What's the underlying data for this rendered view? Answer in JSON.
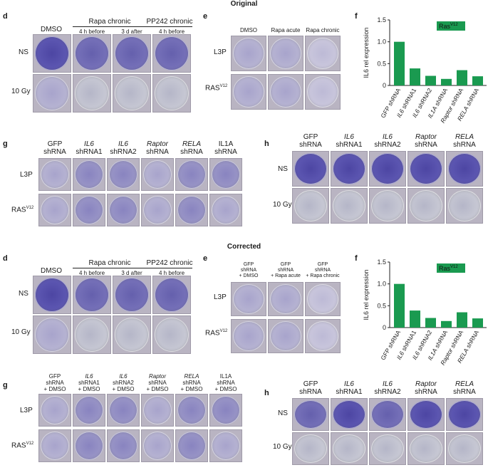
{
  "sections": {
    "top_title": "Original",
    "bottom_title": "Corrected"
  },
  "panel_labels": {
    "d": "d",
    "e": "e",
    "f": "f",
    "g": "g",
    "h": "h"
  },
  "panel_d": {
    "col_dmso": "DMSO",
    "group_rapa": "Rapa chronic",
    "group_pp242": "PP242 chronic",
    "sub_4h_before": "4 h before",
    "sub_3d_after": "3 d after",
    "row_ns": "NS",
    "row_10gy": "10 Gy"
  },
  "panel_e_orig": {
    "cols": [
      "DMSO",
      "Rapa acute",
      "Rapa chronic"
    ],
    "row_l3p": "L3P",
    "row_ras": "RAS",
    "row_ras_sup": "V12"
  },
  "panel_e_corr": {
    "col1": [
      "GFP",
      "shRNA",
      "+ DMSO"
    ],
    "col2": [
      "GFP",
      "shRNA",
      "+ Rapa acute"
    ],
    "col3": [
      "GFP",
      "shRNA",
      "+ Rapa chronic"
    ]
  },
  "panel_g_orig": {
    "cols": [
      [
        "GFP",
        "shRNA"
      ],
      [
        "IL6",
        "shRNA1"
      ],
      [
        "IL6",
        "shRNA2"
      ],
      [
        "Raptor",
        "shRNA"
      ],
      [
        "RELA",
        "shRNA"
      ],
      [
        "IL1A",
        "shRNA"
      ]
    ],
    "row_l3p": "L3P",
    "row_ras": "RAS",
    "row_ras_sup": "V12"
  },
  "panel_g_corr": {
    "cols": [
      [
        "GFP",
        "shRNA",
        "+ DMSO"
      ],
      [
        "IL6",
        "shRNA1",
        "+ DMSO"
      ],
      [
        "IL6",
        "shRNA2",
        "+ DMSO"
      ],
      [
        "Raptor",
        "shRNA",
        "+ DMSO"
      ],
      [
        "RELA",
        "shRNA",
        "+ DMSO"
      ],
      [
        "IL1A",
        "shRNA",
        "+ DMSO"
      ]
    ]
  },
  "panel_h": {
    "cols": [
      [
        "GFP",
        "shRNA"
      ],
      [
        "IL6",
        "shRNA1"
      ],
      [
        "IL6",
        "shRNA2"
      ],
      [
        "Raptor",
        "shRNA"
      ],
      [
        "RELA",
        "shRNA"
      ]
    ],
    "row_ns": "NS",
    "row_10gy": "10 Gy"
  },
  "chart_data": [
    {
      "type": "bar",
      "panel": "f (Original)",
      "categories": [
        "GFP shRNA",
        "IL6 shRNA1",
        "IL6 shRNA2",
        "IL1A shRNA",
        "Raptor shRNA",
        "RELA shRNA"
      ],
      "values": [
        1.0,
        0.39,
        0.22,
        0.15,
        0.35,
        0.21
      ],
      "ylabel": "IL6 rel expression",
      "ylim": [
        0,
        1.5
      ],
      "yticks": [
        "0",
        "0.5",
        "1.0",
        "1.5"
      ],
      "legend": "Ras",
      "legend_sup": "V12",
      "bar_color": "#1a9a50"
    },
    {
      "type": "bar",
      "panel": "f (Corrected)",
      "categories": [
        "GFP shRNA",
        "IL6 shRNA1",
        "IL6 shRNA2",
        "IL1A shRNA",
        "Raptor shRNA",
        "RELA shRNA"
      ],
      "values": [
        1.0,
        0.39,
        0.22,
        0.15,
        0.35,
        0.21
      ],
      "ylabel": "IL6 rel expression",
      "ylim": [
        0,
        1.5
      ],
      "yticks": [
        "0",
        "0.5",
        "1.0",
        "1.5"
      ],
      "legend": "Ras",
      "legend_sup": "V12",
      "bar_color": "#1a9a50"
    }
  ]
}
